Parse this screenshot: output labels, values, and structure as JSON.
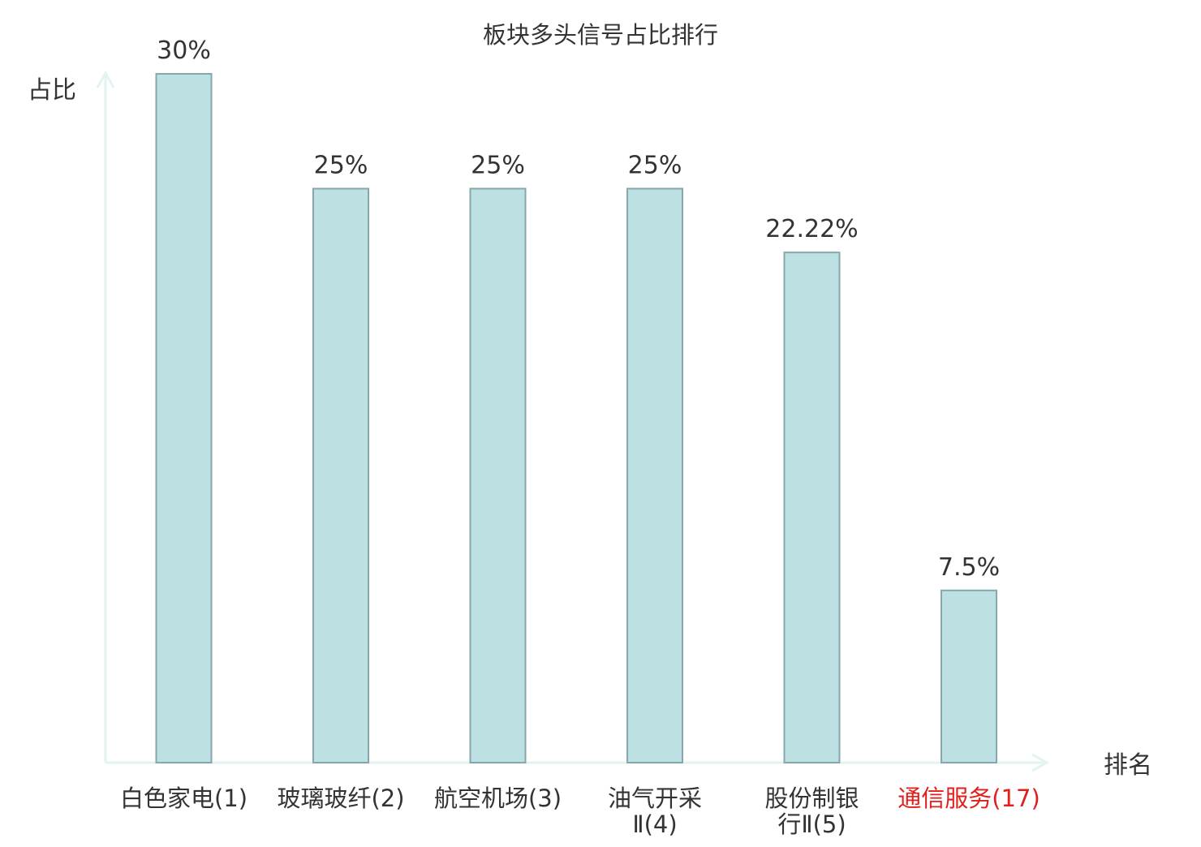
{
  "chart_data": {
    "type": "bar",
    "title": "板块多头信号占比排行",
    "xlabel": "排名",
    "ylabel": "占比",
    "categories": [
      [
        "白色家电(1)"
      ],
      [
        "玻璃玻纤(2)"
      ],
      [
        "航空机场(3)"
      ],
      [
        "油气开采",
        "Ⅱ(4)"
      ],
      [
        "股份制银",
        "行Ⅱ(5)"
      ],
      [
        "通信服务(17)"
      ]
    ],
    "values": [
      30,
      25,
      25,
      25,
      22.22,
      7.5
    ],
    "value_labels": [
      "30%",
      "25%",
      "25%",
      "25%",
      "22.22%",
      "7.5%"
    ],
    "highlight_index": 5,
    "ylim": [
      0,
      30
    ],
    "grid": false,
    "legend": "none",
    "colors": {
      "bar_fill": "#bde0e3",
      "bar_stroke": "#86a8ac",
      "axis": "#e2f3f1",
      "text": "#333333",
      "highlight_text": "#e0201c"
    }
  }
}
